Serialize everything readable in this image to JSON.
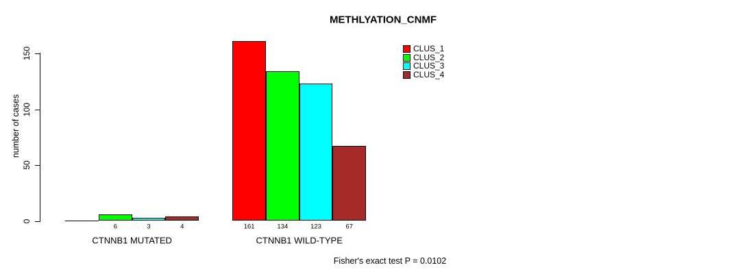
{
  "title": "METHLYATION_CNMF",
  "colors": {
    "background": "#FFFFFF",
    "axis": "#000000",
    "text": "#000000",
    "clus1": "#FF0000",
    "clus2": "#00FF00",
    "clus3": "#00FFFF",
    "clus4": "#A52A2A"
  },
  "legend": {
    "items": [
      {
        "label": "CLUS_1",
        "color": "#FF0000"
      },
      {
        "label": "CLUS_2",
        "color": "#00FF00"
      },
      {
        "label": "CLUS_3",
        "color": "#00FFFF"
      },
      {
        "label": "CLUS_4",
        "color": "#A52A2A"
      }
    ]
  },
  "chart_data": {
    "type": "bar",
    "title": "METHLYATION_CNMF",
    "xlabel": "",
    "ylabel": "number of cases",
    "categories": [
      "CTNNB1 MUTATED",
      "CTNNB1 WILD-TYPE"
    ],
    "series": [
      {
        "name": "CLUS_1",
        "color": "#FF0000",
        "values": [
          0,
          161
        ]
      },
      {
        "name": "CLUS_2",
        "color": "#00FF00",
        "values": [
          6,
          134
        ]
      },
      {
        "name": "CLUS_3",
        "color": "#00FFFF",
        "values": [
          3,
          123
        ]
      },
      {
        "name": "CLUS_4",
        "color": "#A52A2A",
        "values": [
          4,
          67
        ]
      }
    ],
    "bar_value_labels": [
      [
        "",
        "6",
        "3",
        "4"
      ],
      [
        "161",
        "134",
        "123",
        "67"
      ]
    ],
    "yticks": [
      0,
      50,
      100,
      150
    ],
    "ylim": [
      0,
      170
    ],
    "grid": false,
    "legend_position": "top-right",
    "annotation": "Fisher's exact test P = 0.0102"
  }
}
